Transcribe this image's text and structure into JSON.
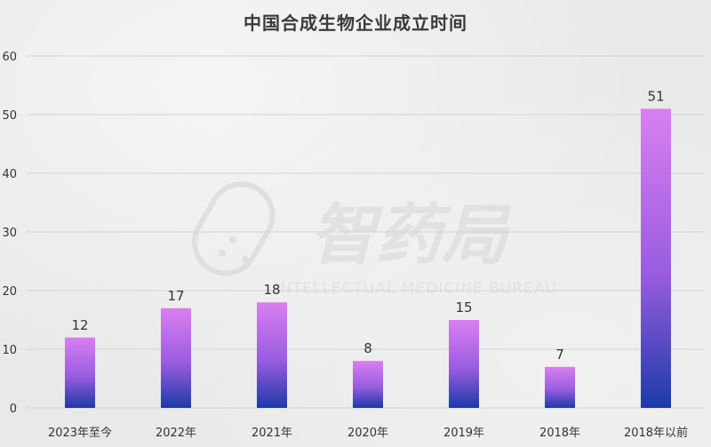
{
  "title": "中国合成生物企业成立时间",
  "watermark": {
    "brand": "智药局",
    "subtitle": "INTELLECTUAL MEDICINE BUREAU"
  },
  "colors": {
    "bar_top": "#d97ff0",
    "bar_mid": "#9a5ce0",
    "bar_bottom": "#1c3aa8",
    "grid": "#d3d3d3",
    "axis_text": "#333333"
  },
  "chart_data": {
    "type": "bar",
    "categories": [
      "2023年至今",
      "2022年",
      "2021年",
      "2020年",
      "2019年",
      "2018年",
      "2018年以前"
    ],
    "values": [
      12,
      17,
      18,
      8,
      15,
      7,
      51
    ],
    "title": "中国合成生物企业成立时间",
    "xlabel": "",
    "ylabel": "",
    "ylim": [
      0,
      60
    ],
    "yticks": [
      0,
      10,
      20,
      30,
      40,
      50,
      60
    ],
    "grid": true,
    "data_labels": true
  }
}
